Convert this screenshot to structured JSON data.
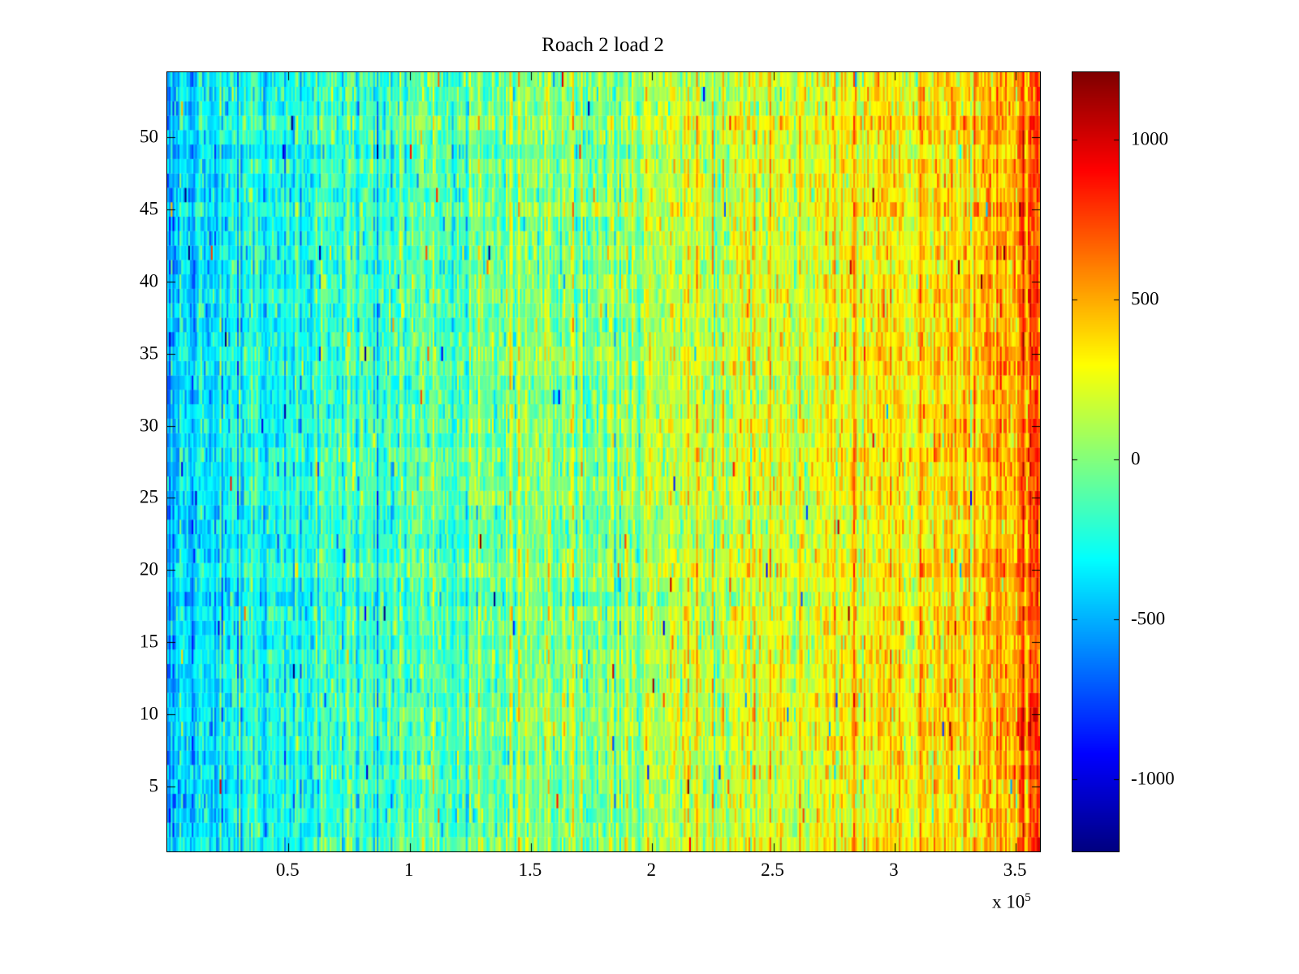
{
  "title": "Roach 2 load 2",
  "x_axis": {
    "tick_labels": [
      "0.5",
      "1",
      "1.5",
      "2",
      "2.5",
      "3",
      "3.5"
    ],
    "tick_values": [
      50000,
      100000,
      150000,
      200000,
      250000,
      300000,
      350000
    ],
    "exponent_prefix": "x 10",
    "exponent": "5"
  },
  "y_axis": {
    "tick_labels": [
      "5",
      "10",
      "15",
      "20",
      "25",
      "30",
      "35",
      "40",
      "45",
      "50"
    ],
    "tick_values": [
      5,
      10,
      15,
      20,
      25,
      30,
      35,
      40,
      45,
      50
    ]
  },
  "colorbar": {
    "tick_labels": [
      "1000",
      "500",
      "0",
      "-500",
      "-1000"
    ],
    "tick_values": [
      1000,
      500,
      0,
      -500,
      -1000
    ]
  },
  "chart_data": {
    "type": "heatmap",
    "title": "Roach 2 load 2",
    "x_range": [
      0,
      360000
    ],
    "y_range": [
      0.5,
      54.5
    ],
    "rows": 54,
    "cols": 500,
    "color_axis": [
      -1225,
      1210
    ],
    "colormap": "jet",
    "colormap_stops": [
      [
        0.0,
        0.0,
        0.0,
        0.5
      ],
      [
        0.125,
        0.0,
        0.0,
        1.0
      ],
      [
        0.375,
        0.0,
        1.0,
        1.0
      ],
      [
        0.625,
        1.0,
        1.0,
        0.0
      ],
      [
        0.875,
        1.0,
        0.0,
        0.0
      ],
      [
        1.0,
        0.5,
        0.0,
        0.0
      ]
    ],
    "trend": {
      "left_mean": -370,
      "right_mean": 470,
      "edge_boost": 300,
      "edge_start": 0.965
    },
    "noise": {
      "column_std": 120,
      "row_std": 35,
      "cell_std": 125,
      "spike_prob": 0.004,
      "spike_min": 500,
      "spike_spread": 600
    },
    "seed": 1337,
    "x_tick_values": [
      50000,
      100000,
      150000,
      200000,
      250000,
      300000,
      350000
    ],
    "y_tick_values": [
      5,
      10,
      15,
      20,
      25,
      30,
      35,
      40,
      45,
      50
    ],
    "colorbar_tick_values": [
      1000,
      500,
      0,
      -500,
      -1000
    ],
    "x_scale_exponent": 5
  }
}
